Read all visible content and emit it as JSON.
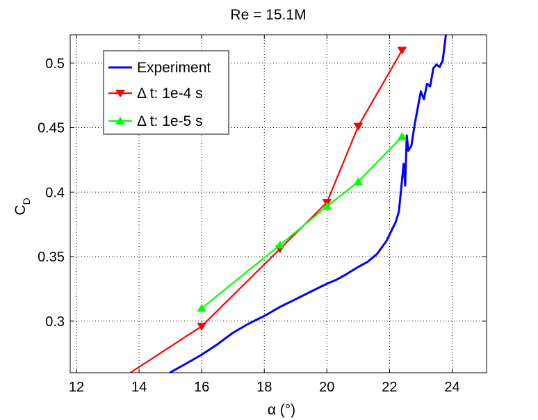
{
  "chart_data": {
    "type": "line",
    "title": "Re = 15.1M",
    "xlabel": "α (°)",
    "ylabel": "C_D",
    "xlim": [
      11.8,
      25.1
    ],
    "ylim": [
      0.26,
      0.522
    ],
    "xticks": [
      12,
      14,
      16,
      18,
      20,
      22,
      24
    ],
    "yticks": [
      0.3,
      0.35,
      0.4,
      0.45,
      0.5
    ],
    "xtick_labels": [
      "12",
      "14",
      "16",
      "18",
      "20",
      "22",
      "24"
    ],
    "ytick_labels": [
      "0.3",
      "0.35",
      "0.4",
      "0.45",
      "0.5"
    ],
    "grid": true,
    "legend_position": "top-left",
    "series": [
      {
        "name": "Experiment",
        "color": "#0000ff",
        "marker": "none",
        "x": [
          14.98,
          15.5,
          16.0,
          16.5,
          17.0,
          17.5,
          18.0,
          18.5,
          19.0,
          19.5,
          20.0,
          20.3,
          20.6,
          21.0,
          21.3,
          21.6,
          21.9,
          22.1,
          22.2,
          22.3,
          22.35,
          22.45,
          22.5,
          22.55,
          22.6,
          22.7,
          22.8,
          22.9,
          23.0,
          23.1,
          23.2,
          23.3,
          23.4,
          23.5,
          23.6,
          23.7,
          23.8
        ],
        "y": [
          0.26,
          0.267,
          0.274,
          0.282,
          0.291,
          0.298,
          0.304,
          0.311,
          0.317,
          0.323,
          0.329,
          0.332,
          0.336,
          0.342,
          0.346,
          0.352,
          0.362,
          0.372,
          0.377,
          0.385,
          0.397,
          0.422,
          0.405,
          0.444,
          0.432,
          0.436,
          0.452,
          0.465,
          0.478,
          0.472,
          0.484,
          0.482,
          0.496,
          0.499,
          0.497,
          0.502,
          0.522
        ]
      },
      {
        "name": "Δ t: 1e-4 s",
        "color": "#ff0000",
        "marker": "triangle-down",
        "x": [
          13.72,
          16.0,
          18.5,
          20.0,
          21.0,
          22.4
        ],
        "y": [
          0.26,
          0.296,
          0.356,
          0.392,
          0.451,
          0.51
        ],
        "marker_x": [
          16.0,
          18.5,
          20.0,
          21.0,
          22.4
        ],
        "marker_y": [
          0.296,
          0.356,
          0.392,
          0.451,
          0.51
        ]
      },
      {
        "name": "Δ t: 1e-5 s",
        "color": "#00ff00",
        "marker": "triangle-up",
        "x": [
          16.0,
          18.5,
          20.0,
          21.0,
          22.4
        ],
        "y": [
          0.31,
          0.359,
          0.389,
          0.408,
          0.443
        ],
        "marker_x": [
          16.0,
          18.5,
          20.0,
          21.0,
          22.4
        ],
        "marker_y": [
          0.31,
          0.359,
          0.389,
          0.408,
          0.443
        ]
      }
    ]
  }
}
